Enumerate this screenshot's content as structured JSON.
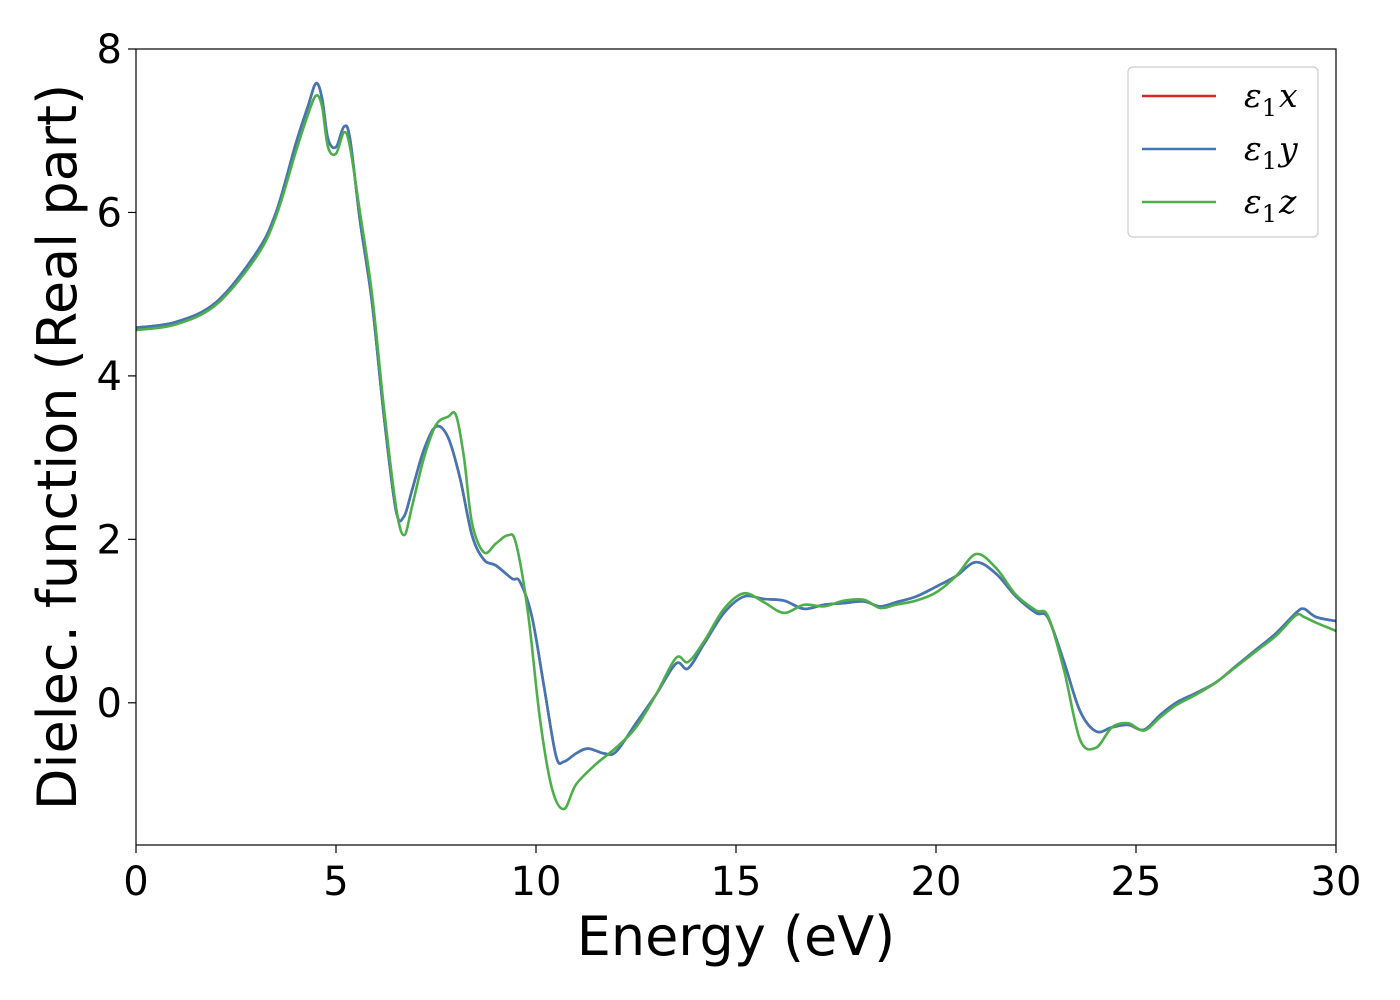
{
  "chart_data": {
    "type": "line",
    "title": "",
    "xlabel": "Energy (eV)",
    "ylabel": "Dielec. function (Real part)",
    "xlim": [
      0,
      30
    ],
    "ylim": [
      -1.74,
      8
    ],
    "xticks": [
      0,
      5,
      10,
      15,
      20,
      25,
      30
    ],
    "yticks": [
      0,
      2,
      4,
      6,
      8
    ],
    "grid": false,
    "legend_position": "top-right",
    "series": [
      {
        "name": "ε1x",
        "legend_base": "ε",
        "legend_sub": "1",
        "legend_var": "x",
        "color": "#d62728",
        "x": [
          0,
          1,
          2,
          3,
          3.5,
          4,
          4.3,
          4.5,
          4.65,
          4.8,
          5.0,
          5.2,
          5.35,
          5.6,
          5.9,
          6.2,
          6.5,
          6.7,
          6.9,
          7.2,
          7.5,
          7.8,
          8.1,
          8.4,
          8.7,
          9.0,
          9.4,
          9.6,
          9.9,
          10.2,
          10.5,
          10.7,
          11.0,
          11.3,
          11.7,
          12.0,
          12.5,
          13.0,
          13.5,
          13.8,
          14.2,
          14.7,
          15.2,
          15.7,
          16.2,
          16.7,
          17.2,
          17.7,
          18.2,
          18.6,
          19.0,
          19.5,
          20.0,
          20.5,
          21.0,
          21.5,
          22.0,
          22.5,
          22.8,
          23.2,
          23.6,
          24.0,
          24.4,
          24.8,
          25.2,
          25.6,
          26.0,
          26.5,
          27.0,
          27.5,
          28.0,
          28.5,
          29.0,
          29.2,
          29.5,
          30.0
        ],
        "y": [
          4.59,
          4.66,
          4.9,
          5.5,
          6.0,
          6.85,
          7.3,
          7.58,
          7.4,
          6.9,
          6.8,
          7.05,
          6.9,
          5.9,
          4.9,
          3.5,
          2.35,
          2.28,
          2.6,
          3.1,
          3.38,
          3.25,
          2.75,
          2.05,
          1.75,
          1.68,
          1.52,
          1.48,
          1.05,
          0.2,
          -0.65,
          -0.72,
          -0.62,
          -0.56,
          -0.62,
          -0.6,
          -0.25,
          0.1,
          0.48,
          0.42,
          0.72,
          1.1,
          1.3,
          1.27,
          1.25,
          1.15,
          1.2,
          1.22,
          1.24,
          1.18,
          1.23,
          1.3,
          1.42,
          1.55,
          1.72,
          1.58,
          1.3,
          1.1,
          1.04,
          0.5,
          -0.1,
          -0.35,
          -0.3,
          -0.27,
          -0.33,
          -0.15,
          0.0,
          0.12,
          0.25,
          0.45,
          0.65,
          0.85,
          1.1,
          1.15,
          1.05,
          1.0
        ]
      },
      {
        "name": "ε1y",
        "legend_base": "ε",
        "legend_sub": "1",
        "legend_var": "y",
        "color": "#4277b6",
        "x": [
          0,
          1,
          2,
          3,
          3.5,
          4,
          4.3,
          4.5,
          4.65,
          4.8,
          5.0,
          5.2,
          5.35,
          5.6,
          5.9,
          6.2,
          6.5,
          6.7,
          6.9,
          7.2,
          7.5,
          7.8,
          8.1,
          8.4,
          8.7,
          9.0,
          9.4,
          9.6,
          9.9,
          10.2,
          10.5,
          10.7,
          11.0,
          11.3,
          11.7,
          12.0,
          12.5,
          13.0,
          13.5,
          13.8,
          14.2,
          14.7,
          15.2,
          15.7,
          16.2,
          16.7,
          17.2,
          17.7,
          18.2,
          18.6,
          19.0,
          19.5,
          20.0,
          20.5,
          21.0,
          21.5,
          22.0,
          22.5,
          22.8,
          23.2,
          23.6,
          24.0,
          24.4,
          24.8,
          25.2,
          25.6,
          26.0,
          26.5,
          27.0,
          27.5,
          28.0,
          28.5,
          29.0,
          29.2,
          29.5,
          30.0
        ],
        "y": [
          4.59,
          4.66,
          4.9,
          5.5,
          6.0,
          6.85,
          7.3,
          7.58,
          7.4,
          6.9,
          6.8,
          7.05,
          6.9,
          5.9,
          4.9,
          3.5,
          2.35,
          2.28,
          2.6,
          3.1,
          3.38,
          3.25,
          2.75,
          2.05,
          1.75,
          1.68,
          1.52,
          1.48,
          1.05,
          0.2,
          -0.65,
          -0.72,
          -0.62,
          -0.56,
          -0.62,
          -0.6,
          -0.25,
          0.1,
          0.48,
          0.42,
          0.72,
          1.1,
          1.3,
          1.27,
          1.25,
          1.15,
          1.2,
          1.22,
          1.24,
          1.18,
          1.23,
          1.3,
          1.42,
          1.55,
          1.72,
          1.58,
          1.3,
          1.1,
          1.04,
          0.5,
          -0.1,
          -0.35,
          -0.3,
          -0.27,
          -0.33,
          -0.15,
          0.0,
          0.12,
          0.25,
          0.45,
          0.65,
          0.85,
          1.1,
          1.15,
          1.05,
          1.0
        ]
      },
      {
        "name": "ε1z",
        "legend_base": "ε",
        "legend_sub": "1",
        "legend_var": "z",
        "color": "#4daf4a",
        "x": [
          0,
          1,
          2,
          3,
          3.5,
          4,
          4.3,
          4.5,
          4.65,
          4.8,
          5.0,
          5.2,
          5.35,
          5.6,
          5.9,
          6.2,
          6.5,
          6.7,
          6.9,
          7.2,
          7.5,
          7.8,
          8.0,
          8.2,
          8.4,
          8.7,
          9.0,
          9.3,
          9.5,
          9.8,
          10.1,
          10.4,
          10.7,
          11.0,
          11.5,
          12.0,
          12.5,
          13.0,
          13.5,
          13.8,
          14.2,
          14.7,
          15.2,
          15.7,
          16.2,
          16.7,
          17.2,
          17.7,
          18.2,
          18.6,
          19.0,
          19.5,
          20.0,
          20.5,
          21.0,
          21.5,
          22.0,
          22.5,
          22.8,
          23.2,
          23.6,
          24.0,
          24.4,
          24.8,
          25.2,
          25.6,
          26.0,
          26.5,
          27.0,
          27.5,
          28.0,
          28.5,
          29.0,
          29.2,
          29.5,
          30.0
        ],
        "y": [
          4.56,
          4.63,
          4.87,
          5.45,
          5.95,
          6.75,
          7.2,
          7.43,
          7.3,
          6.8,
          6.72,
          6.98,
          6.8,
          6.0,
          5.0,
          3.6,
          2.4,
          2.05,
          2.4,
          3.0,
          3.4,
          3.5,
          3.52,
          3.0,
          2.2,
          1.84,
          1.95,
          2.05,
          1.95,
          1.1,
          -0.2,
          -1.05,
          -1.3,
          -1.0,
          -0.75,
          -0.55,
          -0.3,
          0.1,
          0.55,
          0.5,
          0.75,
          1.15,
          1.34,
          1.23,
          1.1,
          1.2,
          1.18,
          1.25,
          1.26,
          1.16,
          1.2,
          1.25,
          1.35,
          1.55,
          1.82,
          1.65,
          1.32,
          1.13,
          1.06,
          0.4,
          -0.45,
          -0.55,
          -0.3,
          -0.25,
          -0.34,
          -0.18,
          -0.03,
          0.1,
          0.25,
          0.44,
          0.63,
          0.82,
          1.07,
          1.05,
          0.98,
          0.88
        ]
      }
    ]
  }
}
